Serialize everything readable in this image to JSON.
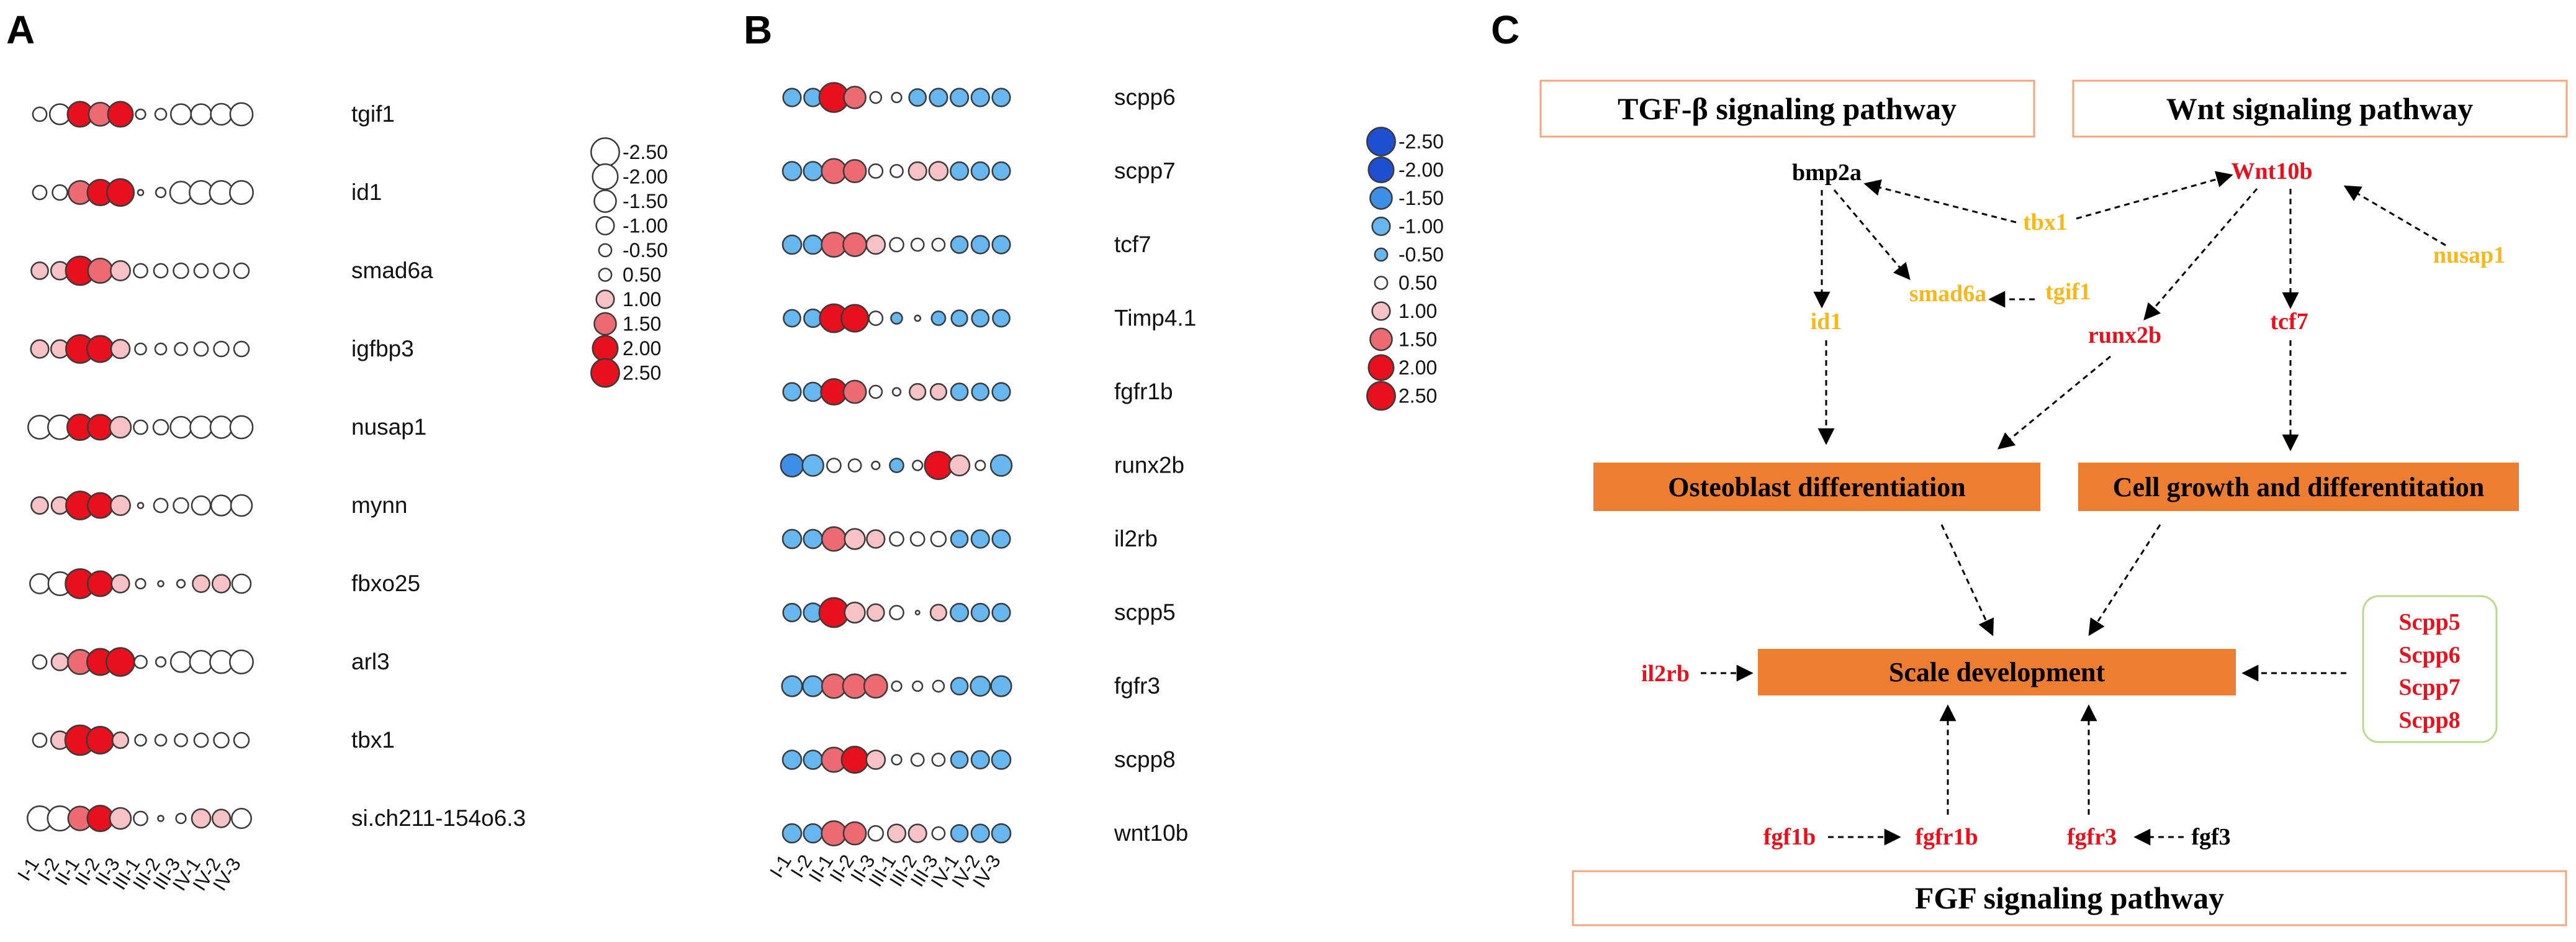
{
  "panels": {
    "A": {
      "letter": "A"
    },
    "B": {
      "letter": "B"
    },
    "C": {
      "letter": "C"
    }
  },
  "colors": {
    "red_high": "#e8101c",
    "red_mid": "#ee6a72",
    "red_low": "#f6c2c6",
    "blue_high": "#1f4fd1",
    "blue_mid": "#3d8ee6",
    "blue_low": "#66b6f0",
    "orange_box": "#ed7d31",
    "yellow_gene": "#f6b81b",
    "red_gene": "#e8101c",
    "pathway_border": "#f2a67a",
    "scpp_border": "#b9d98f"
  },
  "chart_data": [
    {
      "type": "bubble",
      "panel": "A",
      "title": "",
      "xlabel": "",
      "ylabel": "",
      "samples": [
        "I-1",
        "I-2",
        "II-1",
        "II-2",
        "II-3",
        "III-1",
        "III-2",
        "III-3",
        "IV-1",
        "IV-2",
        "IV-3"
      ],
      "genes": [
        "tgif1",
        "id1",
        "smad6a",
        "igfbp3",
        "nusap1",
        "mynn",
        "fbxo25",
        "arl3",
        "tbx1",
        "si.ch211-154o6.3"
      ],
      "values": [
        [
          0.6,
          -1.3,
          2.0,
          1.7,
          2.0,
          -0.3,
          -0.4,
          -1.3,
          -1.3,
          -1.4,
          -1.6
        ],
        [
          0.6,
          0.7,
          1.7,
          2.1,
          2.3,
          0.1,
          -0.3,
          -1.5,
          -1.7,
          -1.7,
          -1.7
        ],
        [
          0.9,
          1.0,
          2.6,
          1.9,
          1.2,
          0.6,
          0.6,
          0.7,
          0.6,
          0.7,
          0.7
        ],
        [
          1.0,
          1.0,
          2.5,
          2.2,
          1.1,
          0.4,
          0.4,
          0.5,
          0.6,
          0.7,
          0.7
        ],
        [
          -1.7,
          -1.8,
          2.1,
          2.0,
          1.4,
          0.6,
          0.7,
          -1.4,
          -1.5,
          -1.5,
          -1.6
        ],
        [
          0.9,
          0.9,
          2.5,
          2.0,
          1.2,
          0.1,
          0.6,
          0.7,
          -1.1,
          -1.3,
          -1.4
        ],
        [
          -1.2,
          -1.7,
          2.7,
          2.0,
          1.0,
          0.3,
          0.1,
          0.2,
          0.9,
          1.0,
          -1.1
        ],
        [
          0.6,
          0.9,
          1.9,
          2.2,
          2.5,
          0.5,
          0.3,
          -1.3,
          -1.6,
          -1.6,
          -1.7
        ],
        [
          0.6,
          1.0,
          2.8,
          2.3,
          0.8,
          0.4,
          0.4,
          0.5,
          0.6,
          0.7,
          0.7
        ],
        [
          -1.9,
          -1.9,
          1.8,
          2.1,
          1.4,
          -0.6,
          0.1,
          0.3,
          1.1,
          1.0,
          -1.2
        ]
      ],
      "legend": [
        -2.5,
        -2.0,
        -1.5,
        -1.0,
        -0.5,
        0.5,
        1.0,
        1.5,
        2.0,
        2.5
      ],
      "legend_labels": [
        "-2.50",
        "-2.00",
        "-1.50",
        "-1.00",
        "-0.50",
        "0.50",
        "1.00",
        "1.50",
        "2.00",
        "2.50"
      ]
    },
    {
      "type": "bubble",
      "panel": "B",
      "title": "",
      "xlabel": "",
      "ylabel": "",
      "samples": [
        "I-1",
        "I-2",
        "II-1",
        "II-2",
        "II-3",
        "III-1",
        "III-2",
        "III-3",
        "IV-1",
        "IV-2",
        "IV-3"
      ],
      "genes": [
        "scpp6",
        "scpp7",
        "tcf7",
        "Timp4.1",
        "fgfr1b",
        "runx2b",
        "il2rb",
        "scpp5",
        "fgfr3",
        "scpp8",
        "wnt10b"
      ],
      "values": [
        [
          -1.0,
          -1.0,
          2.7,
          1.5,
          0.4,
          0.3,
          -0.9,
          -1.0,
          -1.0,
          -1.0,
          -1.0
        ],
        [
          -1.1,
          -1.1,
          1.9,
          1.6,
          0.6,
          0.5,
          1.0,
          1.1,
          -1.0,
          -1.0,
          -1.0
        ],
        [
          -1.1,
          -1.1,
          1.9,
          1.7,
          1.1,
          0.6,
          0.5,
          0.5,
          -0.9,
          -1.0,
          -1.0
        ],
        [
          -0.9,
          -1.0,
          2.5,
          2.3,
          0.6,
          -0.4,
          0.1,
          -0.6,
          -0.8,
          -0.9,
          -0.9
        ],
        [
          -1.0,
          -1.1,
          2.1,
          1.6,
          0.5,
          0.2,
          0.8,
          0.8,
          -0.9,
          -0.9,
          -1.0
        ],
        [
          -1.6,
          -1.4,
          0.6,
          0.5,
          0.2,
          -0.6,
          0.3,
          2.4,
          1.3,
          0.3,
          -1.4
        ],
        [
          -1.1,
          -1.1,
          1.8,
          1.3,
          1.0,
          0.6,
          0.6,
          0.7,
          -0.9,
          -1.0,
          -1.0
        ],
        [
          -1.0,
          -1.1,
          2.7,
          1.3,
          0.9,
          0.6,
          0.05,
          0.8,
          -1.0,
          -1.0,
          -1.0
        ],
        [
          -1.3,
          -1.3,
          1.8,
          1.8,
          1.7,
          0.3,
          0.3,
          0.4,
          -0.9,
          -1.2,
          -1.3
        ],
        [
          -1.1,
          -1.1,
          1.9,
          2.2,
          1.1,
          0.3,
          0.5,
          0.5,
          -0.9,
          -1.0,
          -1.1
        ],
        [
          -1.1,
          -1.1,
          1.9,
          1.6,
          0.7,
          1.0,
          1.0,
          0.5,
          -0.9,
          -1.0,
          -1.1
        ]
      ],
      "legend": [
        -2.5,
        -2.0,
        -1.5,
        -1.0,
        -0.5,
        0.5,
        1.0,
        1.5,
        2.0,
        2.5
      ],
      "legend_labels": [
        "-2.50",
        "-2.00",
        "-1.50",
        "-1.00",
        "-0.50",
        "0.50",
        "1.00",
        "1.50",
        "2.00",
        "2.50"
      ]
    }
  ],
  "diagram": {
    "pathways": {
      "tgf": "TGF-β signaling pathway",
      "wnt": "Wnt signaling pathway",
      "fgf": "FGF signaling pathway"
    },
    "processes": {
      "osteoblast": "Osteoblast differentiation",
      "cell_growth": "Cell growth and differentitation",
      "scale": "Scale development"
    },
    "genes": {
      "bmp2a": "bmp2a",
      "wnt10b": "Wnt10b",
      "tbx1": "tbx1",
      "nusap1": "nusap1",
      "id1": "id1",
      "smad6a": "smad6a",
      "tgif1": "tgif1",
      "runx2b": "runx2b",
      "tcf7": "tcf7",
      "il2rb": "il2rb",
      "fgf1b": "fgf1b",
      "fgfr1b": "fgfr1b",
      "fgfr3": "fgfr3",
      "fgf3": "fgf3"
    },
    "scpp": [
      "Scpp5",
      "Scpp6",
      "Scpp7",
      "Scpp8"
    ]
  }
}
